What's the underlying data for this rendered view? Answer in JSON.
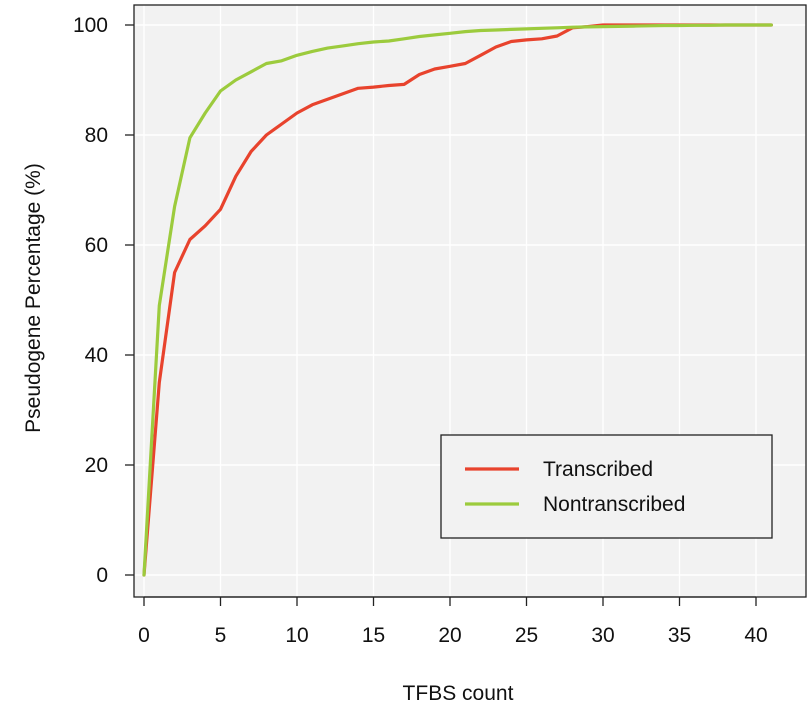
{
  "chart_data": {
    "type": "line",
    "title": "",
    "xlabel": "TFBS count",
    "ylabel": "Pseudogene Percentage (%)",
    "xlim": [
      0,
      41
    ],
    "ylim": [
      0,
      100
    ],
    "xticks": [
      0,
      5,
      10,
      15,
      20,
      25,
      30,
      35,
      40
    ],
    "yticks": [
      0,
      20,
      40,
      60,
      80,
      100
    ],
    "grid": true,
    "legend_position": "bottom-right",
    "series": [
      {
        "name": "Transcribed",
        "color": "#e8432d",
        "x": [
          0,
          1,
          2,
          3,
          4,
          5,
          6,
          7,
          8,
          9,
          10,
          11,
          12,
          13,
          14,
          15,
          16,
          17,
          18,
          19,
          20,
          21,
          22,
          23,
          24,
          25,
          26,
          27,
          28,
          29,
          30,
          31,
          32,
          33,
          34,
          35,
          36,
          37,
          38,
          39,
          40,
          41
        ],
        "y": [
          0,
          35,
          55,
          61,
          63.5,
          66.5,
          72.5,
          77,
          80,
          82,
          84,
          85.5,
          86.5,
          87.5,
          88.5,
          88.7,
          89,
          89.2,
          91,
          92,
          92.5,
          93,
          94.5,
          96,
          97,
          97.3,
          97.5,
          98,
          99.5,
          99.7,
          100,
          100,
          100,
          100,
          100,
          100,
          100,
          100,
          100,
          100,
          100,
          100
        ]
      },
      {
        "name": "Nontranscribed",
        "color": "#9ccb3d",
        "x": [
          0,
          1,
          2,
          3,
          4,
          5,
          6,
          7,
          8,
          9,
          10,
          11,
          12,
          13,
          14,
          15,
          16,
          17,
          18,
          19,
          20,
          21,
          22,
          23,
          24,
          25,
          26,
          27,
          28,
          29,
          30,
          31,
          32,
          33,
          34,
          35,
          36,
          37,
          38,
          39,
          40,
          41
        ],
        "y": [
          0,
          49,
          67,
          79.5,
          84,
          88,
          90,
          91.5,
          93,
          93.5,
          94.5,
          95.2,
          95.8,
          96.2,
          96.6,
          96.9,
          97.1,
          97.5,
          97.9,
          98.2,
          98.5,
          98.8,
          99,
          99.1,
          99.2,
          99.3,
          99.4,
          99.5,
          99.6,
          99.65,
          99.7,
          99.75,
          99.8,
          99.85,
          99.9,
          99.9,
          99.95,
          99.95,
          100,
          100,
          100,
          100
        ]
      }
    ]
  }
}
